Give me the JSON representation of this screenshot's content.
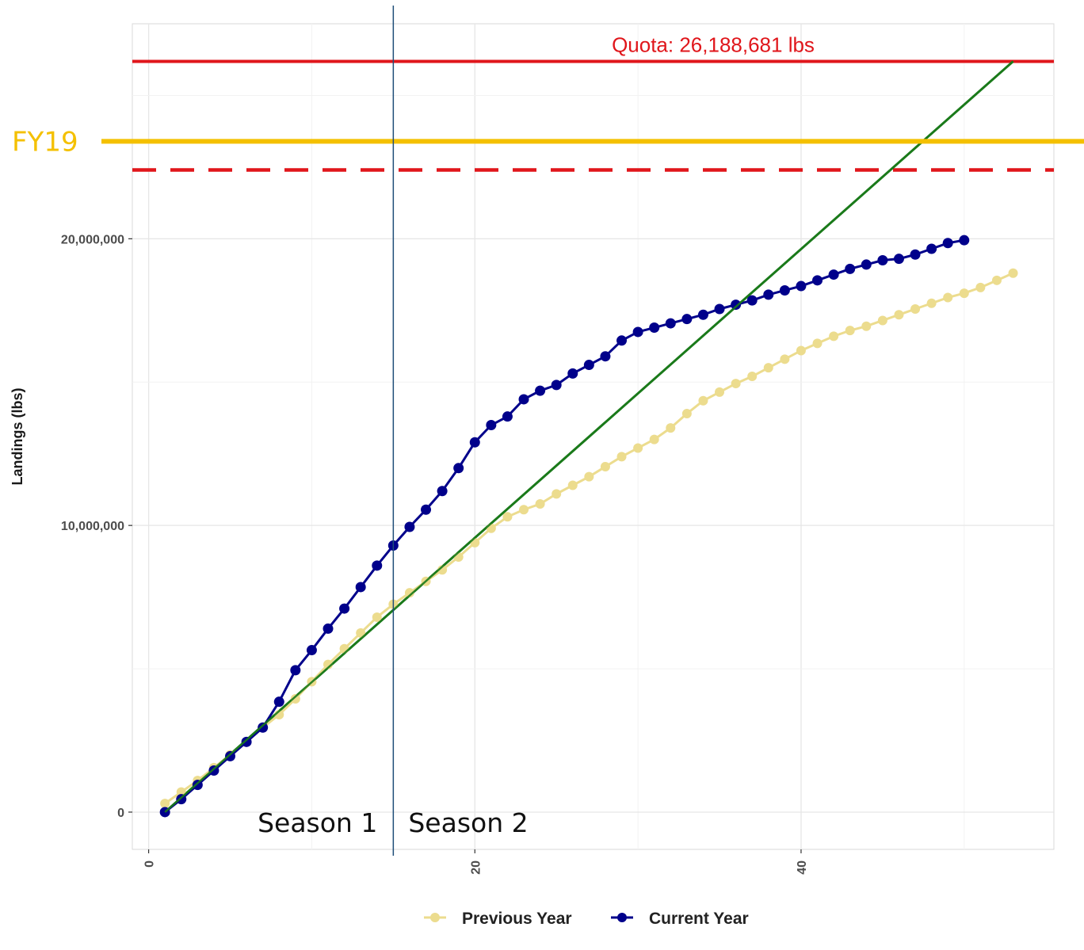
{
  "chart_data": {
    "type": "line",
    "title": "",
    "xlabel": "",
    "ylabel": "Landings (lbs)",
    "xlim": [
      -1,
      55.5
    ],
    "ylim": [
      -1300000,
      27500000
    ],
    "x_ticks": [
      0,
      20,
      40
    ],
    "x_tick_labels": [
      "0",
      "20",
      "40"
    ],
    "y_ticks": [
      0,
      10000000,
      20000000
    ],
    "y_tick_labels": [
      "0",
      "10,000,000",
      "20,000,000"
    ],
    "grid": true,
    "legend_position": "bottom",
    "series": [
      {
        "name": "Previous Year",
        "color": "#ecdc8e",
        "marker": "circle",
        "x": [
          1,
          2,
          3,
          4,
          5,
          6,
          7,
          8,
          9,
          10,
          11,
          12,
          13,
          14,
          15,
          16,
          17,
          18,
          19,
          20,
          21,
          22,
          23,
          24,
          25,
          26,
          27,
          28,
          29,
          30,
          31,
          32,
          33,
          34,
          35,
          36,
          37,
          38,
          39,
          40,
          41,
          42,
          43,
          44,
          45,
          46,
          47,
          48,
          49,
          50,
          51,
          52,
          53
        ],
        "y": [
          300000,
          700000,
          1100000,
          1550000,
          2000000,
          2450000,
          2950000,
          3400000,
          3950000,
          4550000,
          5150000,
          5700000,
          6250000,
          6800000,
          7250000,
          7650000,
          8050000,
          8450000,
          8900000,
          9400000,
          9900000,
          10300000,
          10550000,
          10750000,
          11100000,
          11400000,
          11700000,
          12050000,
          12400000,
          12700000,
          13000000,
          13400000,
          13900000,
          14350000,
          14650000,
          14950000,
          15200000,
          15500000,
          15800000,
          16100000,
          16350000,
          16600000,
          16800000,
          16950000,
          17150000,
          17350000,
          17550000,
          17750000,
          17950000,
          18100000,
          18300000,
          18550000,
          18800000
        ]
      },
      {
        "name": "Current Year",
        "color": "#00008b",
        "marker": "circle",
        "x": [
          1,
          2,
          3,
          4,
          5,
          6,
          7,
          8,
          9,
          10,
          11,
          12,
          13,
          14,
          15,
          16,
          17,
          18,
          19,
          20,
          21,
          22,
          23,
          24,
          25,
          26,
          27,
          28,
          29,
          30,
          31,
          32,
          33,
          34,
          35,
          36,
          37,
          38,
          39,
          40,
          41,
          42,
          43,
          44,
          45,
          46,
          47,
          48,
          49,
          50
        ],
        "y": [
          0,
          450000,
          950000,
          1450000,
          1950000,
          2450000,
          2950000,
          3850000,
          4950000,
          5650000,
          6400000,
          7100000,
          7850000,
          8600000,
          9300000,
          9950000,
          10550000,
          11200000,
          12000000,
          12900000,
          13500000,
          13800000,
          14400000,
          14700000,
          14900000,
          15300000,
          15600000,
          15900000,
          16450000,
          16750000,
          16900000,
          17050000,
          17200000,
          17350000,
          17550000,
          17700000,
          17850000,
          18050000,
          18200000,
          18350000,
          18550000,
          18750000,
          18950000,
          19100000,
          19250000,
          19300000,
          19450000,
          19650000,
          19850000,
          19950000
        ]
      }
    ],
    "reference_lines": {
      "quota_value": 26188681,
      "quota_label": "Quota: 26,188,681 lbs",
      "quota_color": "#e0161b",
      "dashed_value": 22400000,
      "dashed_color": "#e0161b",
      "fy19_value": 23400000,
      "fy19_label": "FY19",
      "fy19_color": "#f4c000",
      "projection_start": [
        1,
        0
      ],
      "projection_end": [
        53,
        26188681
      ],
      "projection_color": "#1a7a1a",
      "season_divider_x": 15,
      "season_divider_color": "#1f4e79",
      "season_labels": [
        "Season 1",
        "Season 2"
      ]
    }
  }
}
